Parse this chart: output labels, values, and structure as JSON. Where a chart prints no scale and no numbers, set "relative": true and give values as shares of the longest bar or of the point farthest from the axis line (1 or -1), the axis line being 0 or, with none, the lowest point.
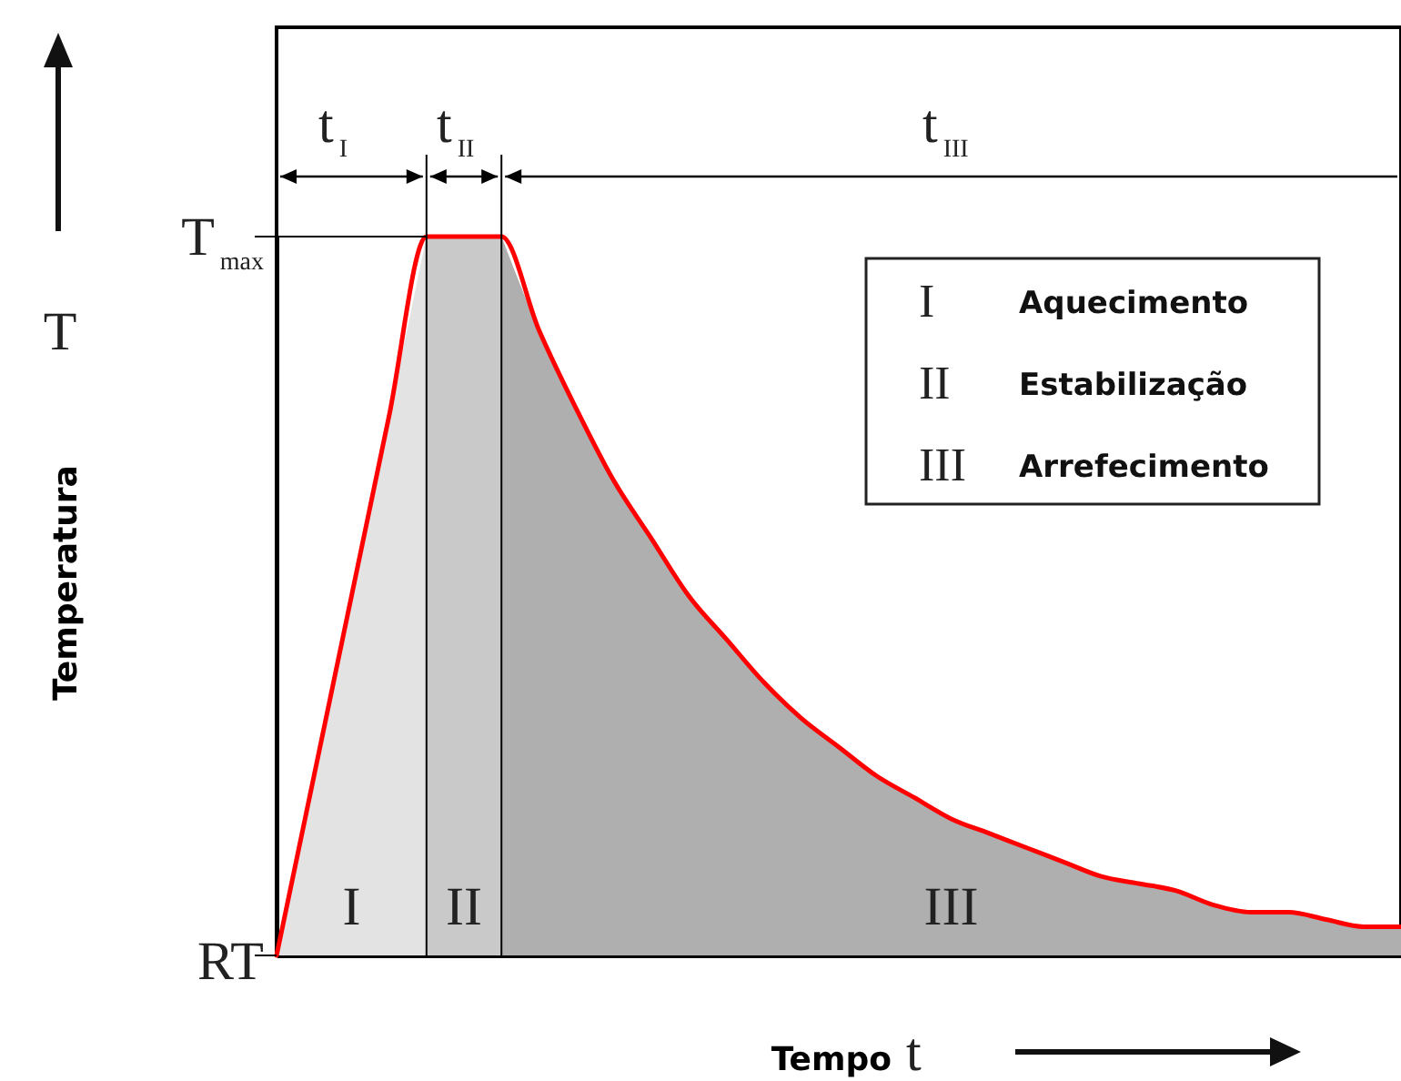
{
  "chart_data": {
    "type": "area",
    "relative": true,
    "xlabel": "Tempo t",
    "ylabel": "Temperatura T",
    "categories": [
      null,
      null,
      null,
      null,
      null,
      null,
      null,
      null,
      null,
      null,
      null,
      null,
      null,
      null,
      null,
      null,
      null,
      null,
      null,
      null,
      null,
      null,
      null,
      null,
      null,
      null,
      null,
      null,
      null,
      null,
      null
    ],
    "series": [
      {
        "name": "I",
        "color": "#e3e3e3",
        "values": [
          0,
          0.25,
          0.5,
          0.75,
          1,
          null,
          null,
          null,
          null,
          null,
          null,
          null,
          null,
          null,
          null,
          null,
          null,
          null,
          null,
          null,
          null,
          null,
          null,
          null,
          null,
          null,
          null,
          null,
          null,
          null,
          null
        ]
      },
      {
        "name": "II",
        "color": "#c9c9c9",
        "values": [
          null,
          null,
          null,
          null,
          1,
          1,
          1,
          null,
          null,
          null,
          null,
          null,
          null,
          null,
          null,
          null,
          null,
          null,
          null,
          null,
          null,
          null,
          null,
          null,
          null,
          null,
          null,
          null,
          null,
          null,
          null
        ]
      },
      {
        "name": "III",
        "color": "#afafaf",
        "values": [
          null,
          null,
          null,
          null,
          null,
          null,
          1,
          0.87,
          0.76,
          0.66,
          0.58,
          0.5,
          0.44,
          0.38,
          0.33,
          0.29,
          0.25,
          0.22,
          0.19,
          0.17,
          0.15,
          0.13,
          0.11,
          0.1,
          0.09,
          0.07,
          0.06,
          0.06,
          0.05,
          0.04,
          0.04
        ]
      },
      {
        "type": "line",
        "color": "#ff0000",
        "values": [
          0,
          0.25,
          0.5,
          0.75,
          1,
          1,
          1,
          0.87,
          0.76,
          0.66,
          0.58,
          0.5,
          0.44,
          0.38,
          0.33,
          0.29,
          0.25,
          0.22,
          0.19,
          0.17,
          0.15,
          0.13,
          0.11,
          0.1,
          0.09,
          0.07,
          0.06,
          0.06,
          0.05,
          0.04,
          0.04
        ]
      }
    ],
    "annotations": [
      "t$_{I}$",
      "t$_{II}$",
      "t$_{III}$",
      "T$_{max}$",
      "RT",
      "I Aquecimento",
      "II Estabilização",
      "III Arrefecimento"
    ]
  }
}
